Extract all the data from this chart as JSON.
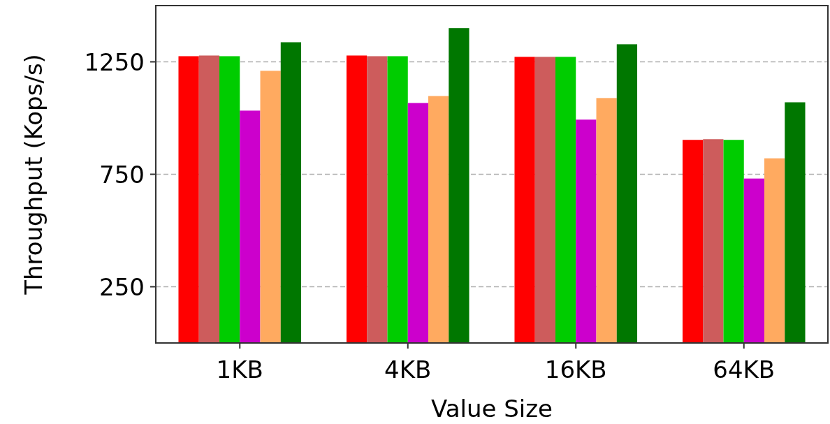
{
  "chart_data": {
    "type": "bar",
    "xlabel": "Value Size",
    "ylabel": "Throughput (Kops/s)",
    "categories": [
      "1KB",
      "4KB",
      "16KB",
      "64KB"
    ],
    "series": [
      {
        "color": "#ff0000",
        "values": [
          1275,
          1278,
          1272,
          903
        ]
      },
      {
        "color": "#cd5c5c",
        "values": [
          1278,
          1275,
          1272,
          906
        ]
      },
      {
        "color": "#00cc00",
        "values": [
          1275,
          1275,
          1272,
          903
        ]
      },
      {
        "color": "#cc00cc",
        "values": [
          1033,
          1067,
          993,
          731
        ]
      },
      {
        "color": "#ffaa60",
        "values": [
          1210,
          1098,
          1089,
          821
        ]
      },
      {
        "color": "#007700",
        "values": [
          1337,
          1400,
          1328,
          1070
        ]
      }
    ],
    "ylim": [
      0,
      1500
    ],
    "yticks": [
      250,
      750,
      1250
    ],
    "grid": "y"
  }
}
